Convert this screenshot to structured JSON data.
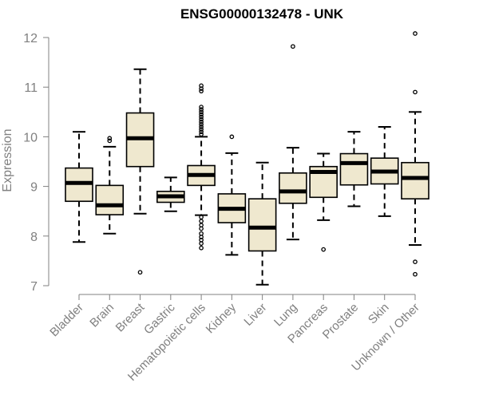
{
  "chart_data": {
    "type": "boxplot",
    "title": "ENSG00000132478 - UNK",
    "xlabel": "",
    "ylabel": "Expression",
    "ylim": [
      7,
      12
    ],
    "yticks": [
      7,
      8,
      9,
      10,
      11,
      12
    ],
    "grid": false,
    "legend": "none",
    "colors": {
      "box_fill": "#efe8cf",
      "stroke": "#000000",
      "axis": "#808080",
      "title": "#000000"
    },
    "categories": [
      "Bladder",
      "Brain",
      "Breast",
      "Gastric",
      "Hematopoietic cells",
      "Kidney",
      "Liver",
      "Lung",
      "Pancreas",
      "Prostate",
      "Skin",
      "Unknown / Other"
    ],
    "boxes": [
      {
        "label": "Bladder",
        "min": 7.88,
        "q1": 8.7,
        "median": 9.07,
        "q3": 9.37,
        "max": 10.1,
        "outliers": []
      },
      {
        "label": "Brain",
        "min": 8.05,
        "q1": 8.43,
        "median": 8.62,
        "q3": 9.02,
        "max": 9.8,
        "outliers": [
          9.92,
          9.97
        ]
      },
      {
        "label": "Breast",
        "min": 8.45,
        "q1": 9.4,
        "median": 9.97,
        "q3": 10.48,
        "max": 11.36,
        "outliers": [
          7.27
        ]
      },
      {
        "label": "Gastric",
        "min": 8.5,
        "q1": 8.68,
        "median": 8.8,
        "q3": 8.9,
        "max": 9.18,
        "outliers": []
      },
      {
        "label": "Hematopoietic cells",
        "min": 8.42,
        "q1": 9.02,
        "median": 9.23,
        "q3": 9.42,
        "max": 10.0,
        "outliers": [
          11.03,
          10.97,
          10.92,
          10.6,
          10.55,
          10.5,
          10.45,
          10.4,
          10.35,
          10.3,
          10.25,
          10.2,
          10.15,
          10.1,
          10.05,
          8.38,
          8.3,
          8.22,
          8.15,
          8.05,
          7.98,
          7.92,
          7.85,
          7.76
        ]
      },
      {
        "label": "Kidney",
        "min": 7.62,
        "q1": 8.27,
        "median": 8.55,
        "q3": 8.85,
        "max": 9.67,
        "outliers": [
          10.0
        ]
      },
      {
        "label": "Liver",
        "min": 7.02,
        "q1": 7.7,
        "median": 8.17,
        "q3": 8.75,
        "max": 9.48,
        "outliers": []
      },
      {
        "label": "Lung",
        "min": 7.93,
        "q1": 8.66,
        "median": 8.9,
        "q3": 9.27,
        "max": 9.78,
        "outliers": [
          11.82
        ]
      },
      {
        "label": "Pancreas",
        "min": 8.32,
        "q1": 8.78,
        "median": 9.29,
        "q3": 9.4,
        "max": 9.66,
        "outliers": [
          7.73
        ]
      },
      {
        "label": "Prostate",
        "min": 8.6,
        "q1": 9.03,
        "median": 9.47,
        "q3": 9.66,
        "max": 10.1,
        "outliers": []
      },
      {
        "label": "Skin",
        "min": 8.4,
        "q1": 9.05,
        "median": 9.3,
        "q3": 9.57,
        "max": 10.2,
        "outliers": []
      },
      {
        "label": "Unknown / Other",
        "min": 7.82,
        "q1": 8.75,
        "median": 9.17,
        "q3": 9.48,
        "max": 10.5,
        "outliers": [
          12.08,
          10.9,
          7.48,
          7.23
        ]
      }
    ]
  }
}
